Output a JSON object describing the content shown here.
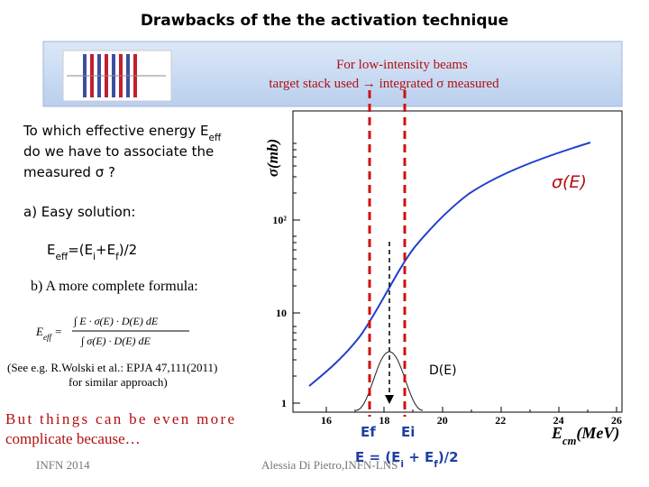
{
  "title": "Drawbacks  of the  the activation technique",
  "banner": {
    "line1": "For low-intensity beams",
    "line2": "target stack used → integrated σ measured"
  },
  "question": [
    [
      "To which effective energy E",
      "eff"
    ],
    [
      "do we have to associate the"
    ],
    [
      "measured σ ?"
    ]
  ],
  "easy": {
    "label": "a)   Easy solution:",
    "formula": [
      "E",
      "eff",
      "=(E",
      "i",
      "+E",
      "f",
      ")/2"
    ]
  },
  "complete": {
    "label": "b) A more complete formula:",
    "lhs": [
      "E",
      "eff",
      " ="
    ],
    "num": "∫ E · σ(E) · D(E) dE",
    "den": "∫ σ(E) · D(E) dE"
  },
  "reference": {
    "line1": "(See e.g.  R.Wolski et al.: EPJA 47,111(2011)",
    "line2": "for similar approach)"
  },
  "complicate": {
    "line1": "But  things  can  be  even  more",
    "line2": "complicate because…"
  },
  "plot": {
    "ylabel": "σ(mb)",
    "xlabel": [
      "E",
      "cm",
      "(MeV)"
    ],
    "curve_label": "σ(E)",
    "dist_label": "D(E)",
    "ef": "Ef",
    "ei": "Ei",
    "mean": [
      "E = (E",
      "i",
      " + E",
      "f",
      ")/2"
    ],
    "yticks": [
      "1",
      "10",
      "10²"
    ],
    "xticks": [
      "16",
      "18",
      "20",
      "22",
      "24",
      "26"
    ]
  },
  "footer": {
    "left": "INFN 2014",
    "center": "Alessia Di Pietro,INFN-LNS"
  }
}
